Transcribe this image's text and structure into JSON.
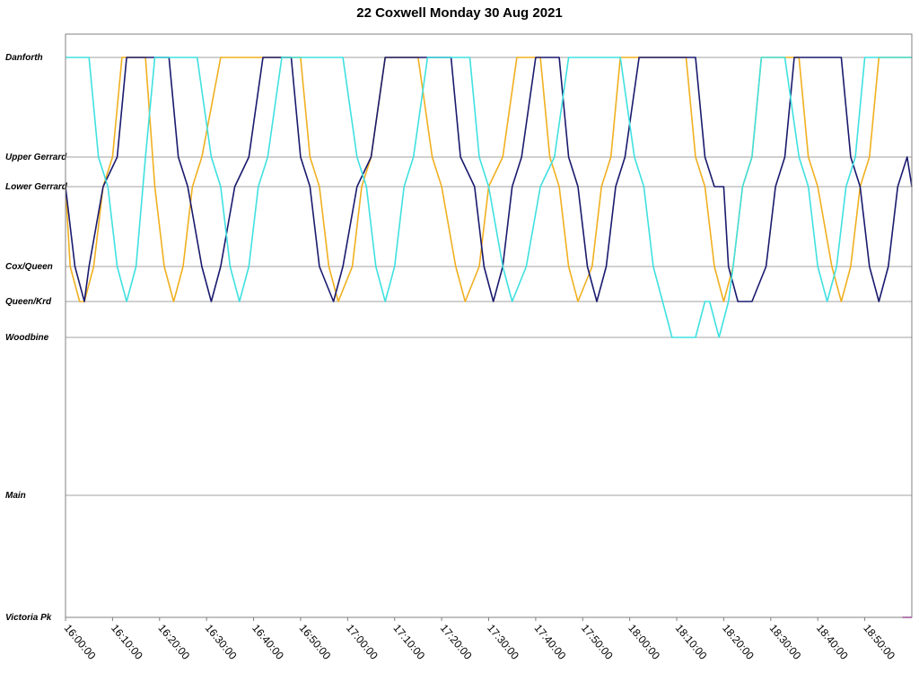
{
  "chart_data": {
    "type": "line",
    "title": "22 Coxwell Monday 30 Aug 2021",
    "y_stops": [
      "Danforth",
      "Upper Gerrard",
      "Lower Gerrard",
      "Cox/Queen",
      "Queen/Krd",
      "Woodbine",
      "Main",
      "Victoria Pk"
    ],
    "y_stop_positions_minutes_scale": "ordered top to bottom",
    "x_range": [
      "16:00:00",
      "19:00:00"
    ],
    "x_ticks": [
      "16:00:00",
      "16:10:00",
      "16:20:00",
      "16:30:00",
      "16:40:00",
      "16:50:00",
      "17:00:00",
      "17:10:00",
      "17:20:00",
      "17:30:00",
      "17:40:00",
      "17:50:00",
      "18:00:00",
      "18:10:00",
      "18:20:00",
      "18:30:00",
      "18:40:00",
      "18:50:00"
    ],
    "grid": "horizontal",
    "series": [
      {
        "color": "#f0b020",
        "points": [
          [
            "16:00:00",
            "Lower Gerrard"
          ],
          [
            "16:01:00",
            "Cox/Queen"
          ],
          [
            "16:03:00",
            "Queen/Krd"
          ],
          [
            "16:04:00",
            "Queen/Krd"
          ],
          [
            "16:06:00",
            "Cox/Queen"
          ],
          [
            "16:08:00",
            "Lower Gerrard"
          ],
          [
            "16:10:00",
            "Upper Gerrard"
          ],
          [
            "16:12:00",
            "Danforth"
          ],
          [
            "16:17:00",
            "Danforth"
          ],
          [
            "16:19:00",
            "Lower Gerrard"
          ],
          [
            "16:21:00",
            "Cox/Queen"
          ],
          [
            "16:23:00",
            "Queen/Krd"
          ],
          [
            "16:25:00",
            "Cox/Queen"
          ],
          [
            "16:27:00",
            "Lower Gerrard"
          ],
          [
            "16:29:00",
            "Upper Gerrard"
          ],
          [
            "16:33:00",
            "Danforth"
          ],
          [
            "16:50:00",
            "Danforth"
          ],
          [
            "16:52:00",
            "Upper Gerrard"
          ],
          [
            "16:54:00",
            "Lower Gerrard"
          ],
          [
            "16:56:00",
            "Cox/Queen"
          ],
          [
            "16:58:00",
            "Queen/Krd"
          ],
          [
            "17:01:00",
            "Cox/Queen"
          ],
          [
            "17:03:00",
            "Lower Gerrard"
          ],
          [
            "17:05:00",
            "Upper Gerrard"
          ],
          [
            "17:08:00",
            "Danforth"
          ],
          [
            "17:15:00",
            "Danforth"
          ],
          [
            "17:18:00",
            "Upper Gerrard"
          ],
          [
            "17:20:00",
            "Lower Gerrard"
          ],
          [
            "17:23:00",
            "Cox/Queen"
          ],
          [
            "17:25:00",
            "Queen/Krd"
          ],
          [
            "17:28:00",
            "Cox/Queen"
          ],
          [
            "17:30:00",
            "Lower Gerrard"
          ],
          [
            "17:33:00",
            "Upper Gerrard"
          ],
          [
            "17:36:00",
            "Danforth"
          ],
          [
            "17:41:00",
            "Danforth"
          ],
          [
            "17:43:00",
            "Upper Gerrard"
          ],
          [
            "17:45:00",
            "Lower Gerrard"
          ],
          [
            "17:47:00",
            "Cox/Queen"
          ],
          [
            "17:49:00",
            "Queen/Krd"
          ],
          [
            "17:52:00",
            "Cox/Queen"
          ],
          [
            "17:54:00",
            "Lower Gerrard"
          ],
          [
            "17:56:00",
            "Upper Gerrard"
          ],
          [
            "17:58:00",
            "Danforth"
          ],
          [
            "18:12:00",
            "Danforth"
          ],
          [
            "18:14:00",
            "Upper Gerrard"
          ],
          [
            "18:16:00",
            "Lower Gerrard"
          ],
          [
            "18:18:00",
            "Cox/Queen"
          ],
          [
            "18:20:00",
            "Queen/Krd"
          ],
          [
            "18:22:00",
            "Cox/Queen"
          ],
          [
            "18:24:00",
            "Lower Gerrard"
          ],
          [
            "18:26:00",
            "Upper Gerrard"
          ],
          [
            "18:28:00",
            "Danforth"
          ],
          [
            "18:36:00",
            "Danforth"
          ],
          [
            "18:38:00",
            "Upper Gerrard"
          ],
          [
            "18:40:00",
            "Lower Gerrard"
          ],
          [
            "18:43:00",
            "Cox/Queen"
          ],
          [
            "18:45:00",
            "Queen/Krd"
          ],
          [
            "18:47:00",
            "Cox/Queen"
          ],
          [
            "18:49:00",
            "Lower Gerrard"
          ],
          [
            "18:51:00",
            "Upper Gerrard"
          ],
          [
            "18:53:00",
            "Danforth"
          ],
          [
            "19:00:00",
            "Danforth"
          ]
        ]
      },
      {
        "color": "#1a1a6e",
        "points": [
          [
            "16:00:00",
            "Lower Gerrard"
          ],
          [
            "16:02:00",
            "Cox/Queen"
          ],
          [
            "16:04:00",
            "Queen/Krd"
          ],
          [
            "16:05:00",
            "Cox/Queen"
          ],
          [
            "16:08:00",
            "Lower Gerrard"
          ],
          [
            "16:11:00",
            "Upper Gerrard"
          ],
          [
            "16:13:00",
            "Danforth"
          ],
          [
            "16:22:00",
            "Danforth"
          ],
          [
            "16:24:00",
            "Upper Gerrard"
          ],
          [
            "16:26:00",
            "Lower Gerrard"
          ],
          [
            "16:29:00",
            "Cox/Queen"
          ],
          [
            "16:31:00",
            "Queen/Krd"
          ],
          [
            "16:33:00",
            "Cox/Queen"
          ],
          [
            "16:36:00",
            "Lower Gerrard"
          ],
          [
            "16:39:00",
            "Upper Gerrard"
          ],
          [
            "16:42:00",
            "Danforth"
          ],
          [
            "16:48:00",
            "Danforth"
          ],
          [
            "16:50:00",
            "Upper Gerrard"
          ],
          [
            "16:52:00",
            "Lower Gerrard"
          ],
          [
            "16:54:00",
            "Cox/Queen"
          ],
          [
            "16:57:00",
            "Queen/Krd"
          ],
          [
            "16:59:00",
            "Cox/Queen"
          ],
          [
            "17:02:00",
            "Lower Gerrard"
          ],
          [
            "17:05:00",
            "Upper Gerrard"
          ],
          [
            "17:08:00",
            "Danforth"
          ],
          [
            "17:22:00",
            "Danforth"
          ],
          [
            "17:24:00",
            "Upper Gerrard"
          ],
          [
            "17:27:00",
            "Lower Gerrard"
          ],
          [
            "17:29:00",
            "Cox/Queen"
          ],
          [
            "17:31:00",
            "Queen/Krd"
          ],
          [
            "17:33:00",
            "Cox/Queen"
          ],
          [
            "17:35:00",
            "Lower Gerrard"
          ],
          [
            "17:37:00",
            "Upper Gerrard"
          ],
          [
            "17:40:00",
            "Danforth"
          ],
          [
            "17:45:00",
            "Danforth"
          ],
          [
            "17:47:00",
            "Upper Gerrard"
          ],
          [
            "17:49:00",
            "Lower Gerrard"
          ],
          [
            "17:51:00",
            "Cox/Queen"
          ],
          [
            "17:53:00",
            "Queen/Krd"
          ],
          [
            "17:55:00",
            "Cox/Queen"
          ],
          [
            "17:57:00",
            "Lower Gerrard"
          ],
          [
            "17:59:00",
            "Upper Gerrard"
          ],
          [
            "18:02:00",
            "Danforth"
          ],
          [
            "18:14:00",
            "Danforth"
          ],
          [
            "18:16:00",
            "Upper Gerrard"
          ],
          [
            "18:18:00",
            "Lower Gerrard"
          ],
          [
            "18:20:00",
            "Lower Gerrard"
          ],
          [
            "18:21:00",
            "Cox/Queen"
          ],
          [
            "18:23:00",
            "Queen/Krd"
          ],
          [
            "18:26:00",
            "Queen/Krd"
          ],
          [
            "18:29:00",
            "Cox/Queen"
          ],
          [
            "18:31:00",
            "Lower Gerrard"
          ],
          [
            "18:33:00",
            "Upper Gerrard"
          ],
          [
            "18:35:00",
            "Danforth"
          ],
          [
            "18:45:00",
            "Danforth"
          ],
          [
            "18:47:00",
            "Upper Gerrard"
          ],
          [
            "18:49:00",
            "Lower Gerrard"
          ],
          [
            "18:51:00",
            "Cox/Queen"
          ],
          [
            "18:53:00",
            "Queen/Krd"
          ],
          [
            "18:55:00",
            "Cox/Queen"
          ],
          [
            "18:57:00",
            "Lower Gerrard"
          ],
          [
            "18:59:00",
            "Upper Gerrard"
          ],
          [
            "19:00:00",
            "Lower Gerrard"
          ]
        ]
      },
      {
        "color": "#40e0e0",
        "points": [
          [
            "16:00:00",
            "Danforth"
          ],
          [
            "16:05:00",
            "Danforth"
          ],
          [
            "16:07:00",
            "Upper Gerrard"
          ],
          [
            "16:09:00",
            "Lower Gerrard"
          ],
          [
            "16:11:00",
            "Cox/Queen"
          ],
          [
            "16:13:00",
            "Queen/Krd"
          ],
          [
            "16:15:00",
            "Cox/Queen"
          ],
          [
            "16:17:00",
            "Upper Gerrard"
          ],
          [
            "16:19:00",
            "Danforth"
          ],
          [
            "16:28:00",
            "Danforth"
          ],
          [
            "16:31:00",
            "Upper Gerrard"
          ],
          [
            "16:33:00",
            "Lower Gerrard"
          ],
          [
            "16:35:00",
            "Cox/Queen"
          ],
          [
            "16:37:00",
            "Queen/Krd"
          ],
          [
            "16:39:00",
            "Cox/Queen"
          ],
          [
            "16:41:00",
            "Lower Gerrard"
          ],
          [
            "16:43:00",
            "Upper Gerrard"
          ],
          [
            "16:46:00",
            "Danforth"
          ],
          [
            "16:59:00",
            "Danforth"
          ],
          [
            "17:02:00",
            "Upper Gerrard"
          ],
          [
            "17:04:00",
            "Lower Gerrard"
          ],
          [
            "17:06:00",
            "Cox/Queen"
          ],
          [
            "17:08:00",
            "Queen/Krd"
          ],
          [
            "17:10:00",
            "Cox/Queen"
          ],
          [
            "17:12:00",
            "Lower Gerrard"
          ],
          [
            "17:14:00",
            "Upper Gerrard"
          ],
          [
            "17:17:00",
            "Danforth"
          ],
          [
            "17:26:00",
            "Danforth"
          ],
          [
            "17:28:00",
            "Upper Gerrard"
          ],
          [
            "17:30:00",
            "Lower Gerrard"
          ],
          [
            "17:33:00",
            "Cox/Queen"
          ],
          [
            "17:35:00",
            "Queen/Krd"
          ],
          [
            "17:38:00",
            "Cox/Queen"
          ],
          [
            "17:41:00",
            "Lower Gerrard"
          ],
          [
            "17:44:00",
            "Upper Gerrard"
          ],
          [
            "17:47:00",
            "Danforth"
          ],
          [
            "17:58:00",
            "Danforth"
          ],
          [
            "18:01:00",
            "Upper Gerrard"
          ],
          [
            "18:03:00",
            "Lower Gerrard"
          ],
          [
            "18:05:00",
            "Cox/Queen"
          ],
          [
            "18:07:00",
            "Queen/Krd"
          ],
          [
            "18:09:00",
            "Woodbine"
          ],
          [
            "18:14:00",
            "Woodbine"
          ],
          [
            "18:16:00",
            "Queen/Krd"
          ],
          [
            "18:17:00",
            "Queen/Krd"
          ],
          [
            "18:19:00",
            "Woodbine"
          ],
          [
            "18:21:00",
            "Queen/Krd"
          ],
          [
            "18:22:00",
            "Cox/Queen"
          ],
          [
            "18:24:00",
            "Lower Gerrard"
          ],
          [
            "18:26:00",
            "Upper Gerrard"
          ],
          [
            "18:28:00",
            "Danforth"
          ],
          [
            "18:33:00",
            "Danforth"
          ],
          [
            "18:36:00",
            "Upper Gerrard"
          ],
          [
            "18:38:00",
            "Lower Gerrard"
          ],
          [
            "18:40:00",
            "Cox/Queen"
          ],
          [
            "18:42:00",
            "Queen/Krd"
          ],
          [
            "18:44:00",
            "Cox/Queen"
          ],
          [
            "18:46:00",
            "Lower Gerrard"
          ],
          [
            "18:48:00",
            "Upper Gerrard"
          ],
          [
            "18:50:00",
            "Danforth"
          ],
          [
            "19:00:00",
            "Danforth"
          ]
        ]
      },
      {
        "color": "#d020d0",
        "points": [
          [
            "18:58:00",
            "Victoria Pk"
          ],
          [
            "18:58:00",
            "Victoria Pk"
          ],
          [
            "19:00:00",
            "Victoria Pk"
          ]
        ]
      }
    ]
  }
}
